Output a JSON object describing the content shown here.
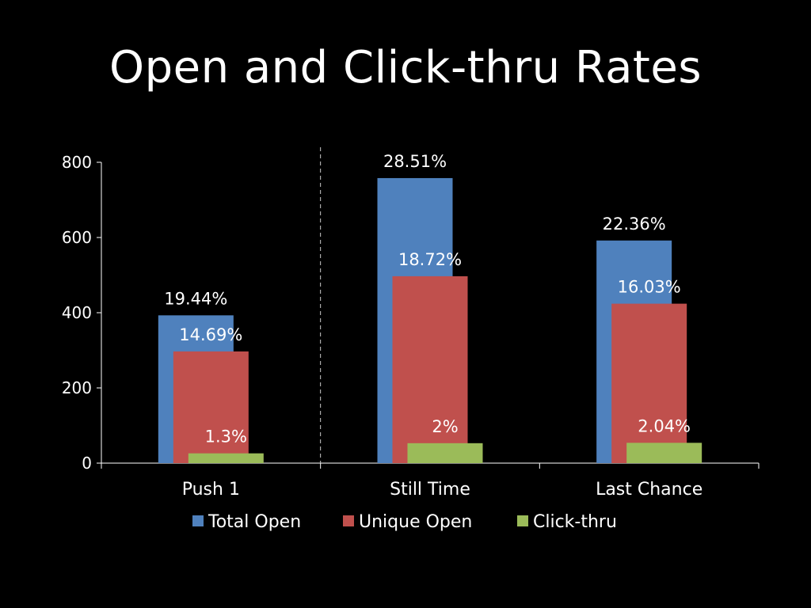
{
  "slide": {
    "title": "Open and Click-thru Rates"
  },
  "chart_data": {
    "type": "bar",
    "title": "Open and Click-thru Rates",
    "categories": [
      "Push 1",
      "Still Time",
      "Last Chance"
    ],
    "series": [
      {
        "name": "Total Open",
        "color": "#4f81bd",
        "values": [
          393,
          758,
          592
        ],
        "labels": [
          "19.44%",
          "28.51%",
          "22.36%"
        ]
      },
      {
        "name": "Unique Open",
        "color": "#c0504d",
        "values": [
          297,
          497,
          424
        ],
        "labels": [
          "14.69%",
          "18.72%",
          "16.03%"
        ]
      },
      {
        "name": "Click-thru",
        "color": "#9bbb59",
        "values": [
          26,
          53,
          54
        ],
        "labels": [
          "1.3%",
          "2%",
          "2.04%"
        ]
      }
    ],
    "y_ticks": [
      "0",
      "200",
      "400",
      "600",
      "800"
    ],
    "ylim": [
      0,
      800
    ],
    "xlabel": "",
    "ylabel": "",
    "grid": false,
    "legend_position": "bottom",
    "divider_after_category": "Push 1",
    "axis_color": "#ffffff",
    "background": "#000000"
  }
}
